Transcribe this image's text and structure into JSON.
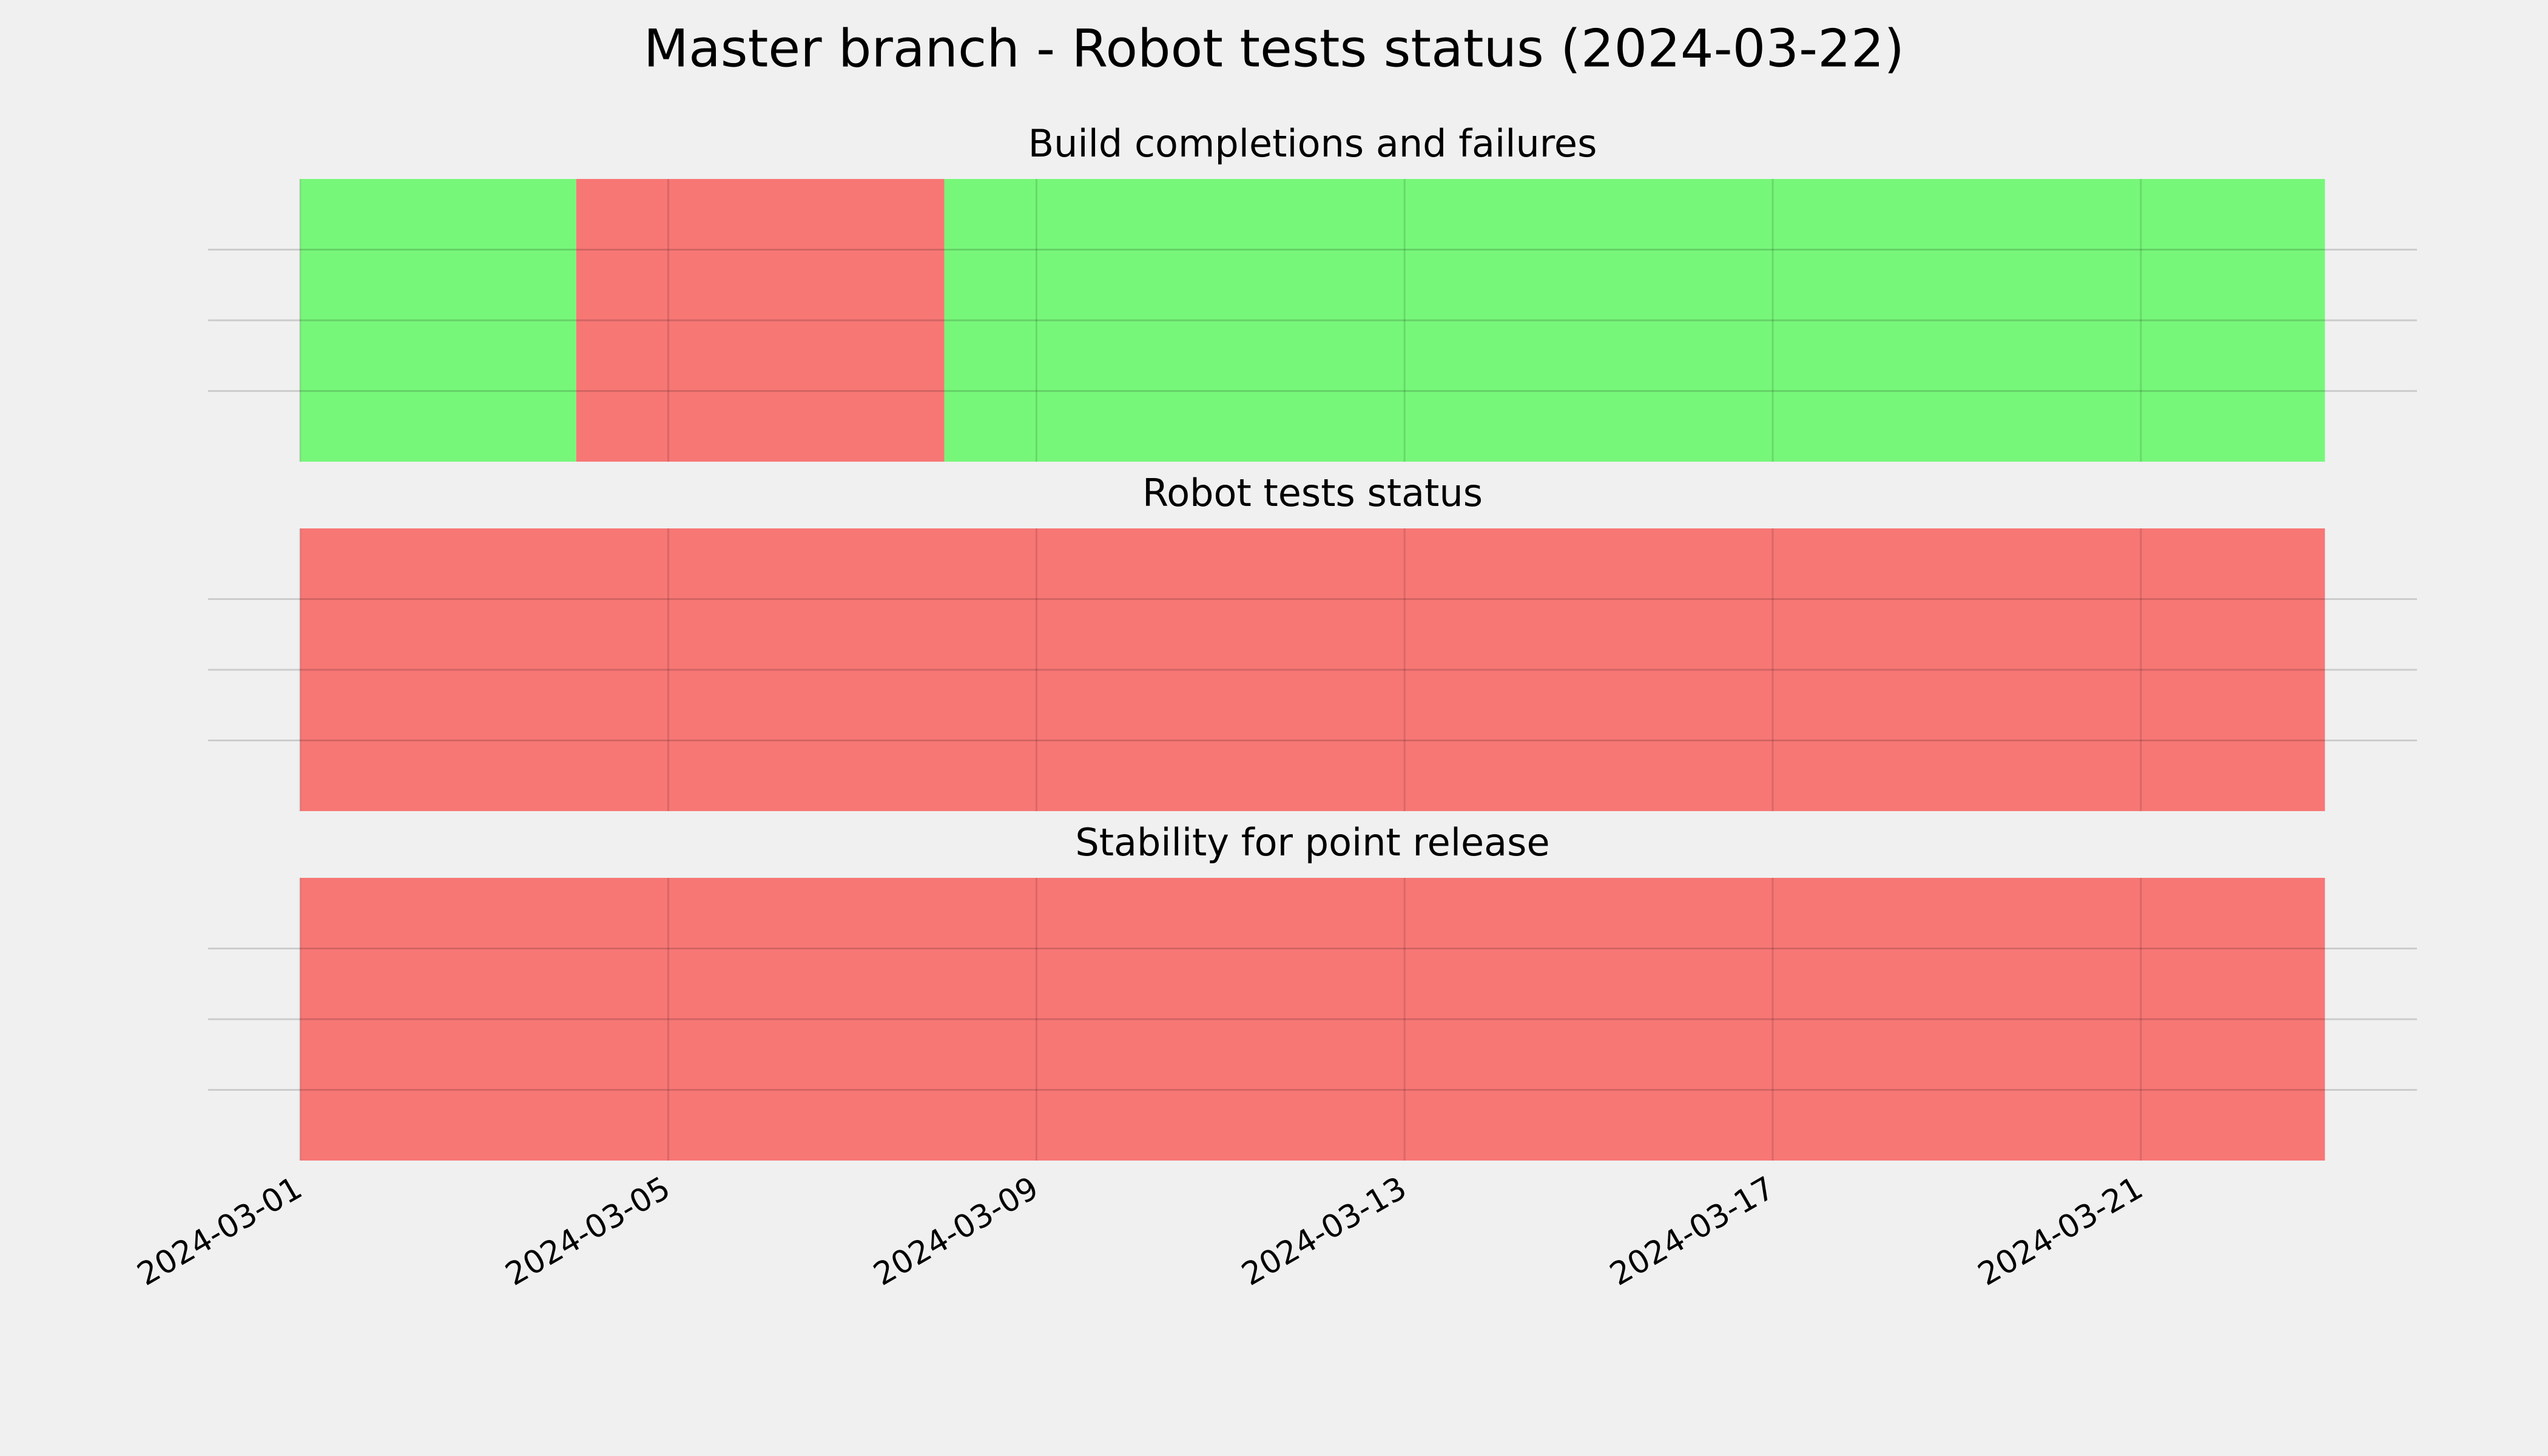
{
  "title": "Master branch - Robot tests status (2024-03-22)",
  "chart_data": [
    {
      "type": "timeline",
      "title": "Build completions and failures",
      "spans": [
        {
          "start": "2024-03-01",
          "end": "2024-03-04",
          "color": "#77f77a"
        },
        {
          "start": "2024-03-04",
          "end": "2024-03-08",
          "color": "#f77775"
        },
        {
          "start": "2024-03-08",
          "end": "2024-03-23",
          "color": "#77f77a"
        }
      ],
      "xlim": [
        "2024-02-29",
        "2024-03-24"
      ],
      "xticks": [
        "2024-03-01",
        "2024-03-05",
        "2024-03-09",
        "2024-03-13",
        "2024-03-17",
        "2024-03-21"
      ],
      "ylim": [
        0,
        1
      ],
      "yticks": [
        0.25,
        0.5,
        0.75
      ],
      "grid": true
    },
    {
      "type": "timeline",
      "title": "Robot tests status",
      "spans": [
        {
          "start": "2024-03-01",
          "end": "2024-03-23",
          "color": "#f77775"
        }
      ],
      "xlim": [
        "2024-02-29",
        "2024-03-24"
      ],
      "xticks": [
        "2024-03-01",
        "2024-03-05",
        "2024-03-09",
        "2024-03-13",
        "2024-03-17",
        "2024-03-21"
      ],
      "ylim": [
        0,
        1
      ],
      "yticks": [
        0.25,
        0.5,
        0.75
      ],
      "grid": true
    },
    {
      "type": "timeline",
      "title": "Stability for point release",
      "spans": [
        {
          "start": "2024-03-01",
          "end": "2024-03-23",
          "color": "#f77775"
        }
      ],
      "xlim": [
        "2024-02-29",
        "2024-03-24"
      ],
      "xticks": [
        "2024-03-01",
        "2024-03-05",
        "2024-03-09",
        "2024-03-13",
        "2024-03-17",
        "2024-03-21"
      ],
      "ylim": [
        0,
        1
      ],
      "yticks": [
        0.25,
        0.5,
        0.75
      ],
      "grid": true
    }
  ]
}
